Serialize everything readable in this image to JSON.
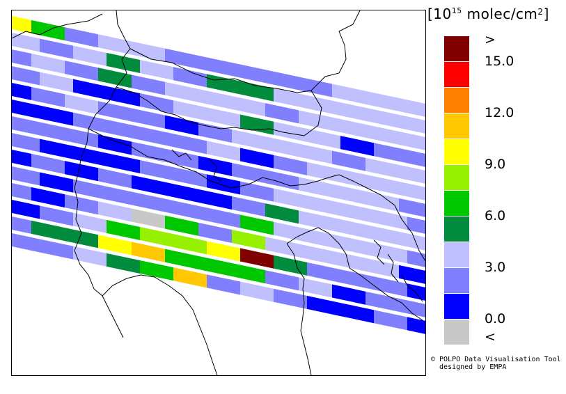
{
  "legend": {
    "title_prefix": "[10",
    "title_exp": "15",
    "title_mid": " molec/cm",
    "title_sq": "2",
    "title_suffix": "]",
    "colors": [
      "#c8c8c8",
      "#0000ff",
      "#8080ff",
      "#c0c0ff",
      "#008c3c",
      "#00c800",
      "#96f000",
      "#ffff00",
      "#ffc800",
      "#ff8000",
      "#ff0000",
      "#800000"
    ],
    "labels": [
      {
        "text": ">",
        "slot": 12
      },
      {
        "text": "15.0",
        "slot": 11
      },
      {
        "text": "12.0",
        "slot": 9
      },
      {
        "text": "9.0",
        "slot": 7
      },
      {
        "text": "6.0",
        "slot": 5
      },
      {
        "text": "3.0",
        "slot": 3
      },
      {
        "text": "0.0",
        "slot": 1
      },
      {
        "text": "<",
        "slot": 0
      }
    ]
  },
  "credit": {
    "line1": "© POLPO Data Visualisation Tool",
    "line2": "  designed by EMPA"
  },
  "swaths": {
    "category_scale": [
      "below 0.0",
      "0.0-1.5",
      "1.5-3.0",
      "3.0-4.5",
      "4.5-6.0",
      "6.0-7.5",
      "7.5-9.0",
      "9.0-10.5",
      "10.5-12.0",
      "12.0-13.5",
      "13.5-15.0",
      "above 15.0"
    ],
    "rows": [
      [
        7,
        5,
        2,
        3,
        3,
        2,
        2,
        2,
        2,
        2,
        3,
        3,
        3
      ],
      [
        3,
        2,
        3,
        4,
        3,
        2,
        4,
        4,
        3,
        3,
        3,
        3,
        3
      ],
      [
        2,
        3,
        2,
        4,
        2,
        3,
        3,
        3,
        2,
        3,
        3,
        3,
        3
      ],
      [
        2,
        3,
        1,
        1,
        2,
        3,
        3,
        4,
        3,
        3,
        1,
        2,
        2
      ],
      [
        1,
        2,
        3,
        2,
        2,
        1,
        2,
        3,
        3,
        3,
        2,
        3,
        3
      ],
      [
        1,
        1,
        2,
        2,
        2,
        2,
        3,
        1,
        2,
        3,
        3,
        3,
        3
      ],
      [
        2,
        2,
        2,
        1,
        2,
        2,
        1,
        2,
        2,
        3,
        3,
        3,
        2
      ],
      [
        2,
        1,
        1,
        1,
        2,
        2,
        1,
        2,
        3,
        3,
        3,
        3,
        2
      ],
      [
        1,
        2,
        1,
        2,
        1,
        1,
        1,
        2,
        4,
        3,
        3,
        3,
        3
      ],
      [
        2,
        1,
        2,
        2,
        2,
        2,
        2,
        5,
        3,
        3,
        3,
        3,
        2
      ],
      [
        2,
        1,
        2,
        3,
        0,
        5,
        2,
        6,
        3,
        3,
        3,
        3,
        1
      ],
      [
        1,
        2,
        3,
        5,
        6,
        6,
        7,
        11,
        4,
        2,
        2,
        2,
        1
      ],
      [
        2,
        4,
        4,
        7,
        8,
        5,
        5,
        5,
        2,
        3,
        1,
        2,
        2
      ],
      [
        2,
        2,
        3,
        4,
        5,
        8,
        2,
        3,
        2,
        1,
        1,
        2,
        1
      ]
    ]
  }
}
